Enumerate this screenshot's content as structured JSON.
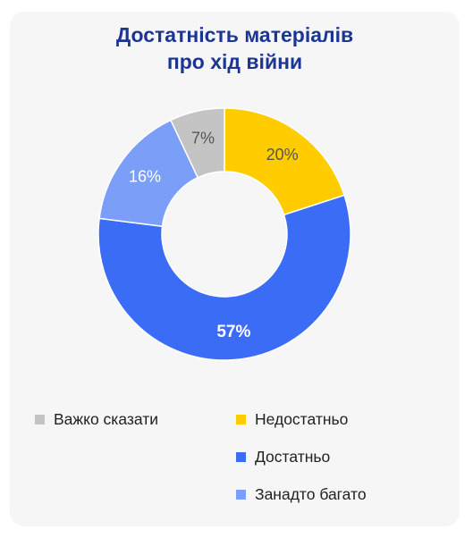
{
  "chart_data": {
    "type": "pie",
    "donut": true,
    "title_lines": [
      "Достатність матеріалів",
      "про хід війни"
    ],
    "unit": "%",
    "slices": [
      {
        "name": "Недостатньо",
        "value": 20,
        "label": "20%",
        "color": "#ffcc00",
        "label_color": "#555555",
        "bold": false
      },
      {
        "name": "Достатньо",
        "value": 57,
        "label": "57%",
        "color": "#3a6cf5",
        "label_color": "#ffffff",
        "bold": true
      },
      {
        "name": "Занадто багато",
        "value": 16,
        "label": "16%",
        "color": "#7b9ff8",
        "label_color": "#ffffff",
        "bold": false
      },
      {
        "name": "Важко сказати",
        "value": 7,
        "label": "7%",
        "color": "#c4c4c4",
        "label_color": "#555555",
        "bold": false
      }
    ],
    "legend": [
      "Важко сказати",
      "Недостатньо",
      "Достатньо",
      "Занадто багато"
    ]
  }
}
